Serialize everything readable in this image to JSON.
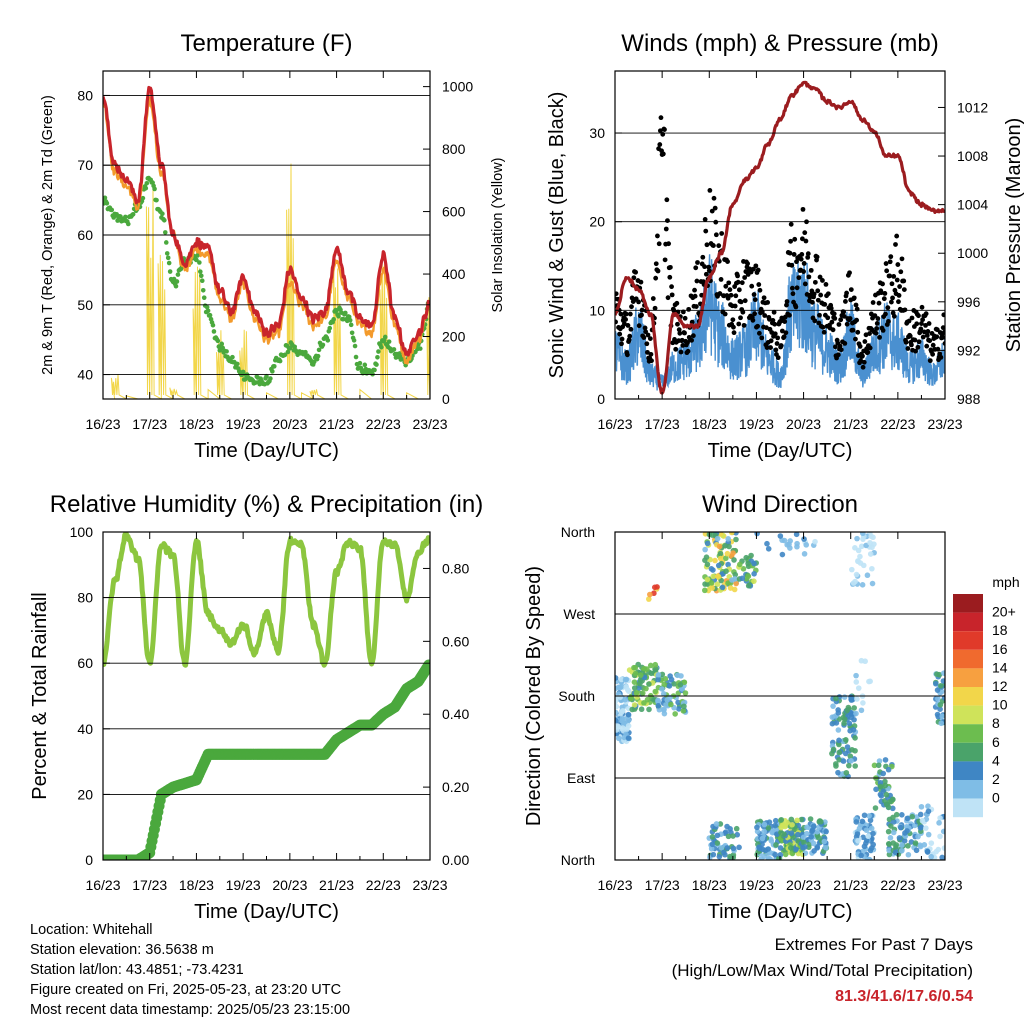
{
  "x_ticks": [
    "16/23",
    "17/23",
    "18/23",
    "19/23",
    "20/23",
    "21/23",
    "22/23",
    "23/23"
  ],
  "panels": {
    "temp": {
      "title": "Temperature (F)",
      "xlabel": "Time (Day/UTC)",
      "ylabel_left": "2m & 9m T (Red, Orange) & 2m Td (Green)",
      "ylabel_right": "Solar Insolation (Yellow)",
      "yticks_left": [
        "40",
        "50",
        "60",
        "70",
        "80"
      ],
      "yticks_right": [
        "0",
        "200",
        "400",
        "600",
        "800",
        "1000"
      ]
    },
    "wind": {
      "title": "Winds (mph) & Pressure (mb)",
      "xlabel": "Time (Day/UTC)",
      "ylabel_left": "Sonic Wind & Gust (Blue, Black)",
      "ylabel_right": "Station Pressure (Maroon)",
      "yticks_left": [
        "0",
        "10",
        "20",
        "30"
      ],
      "yticks_right": [
        "988",
        "992",
        "996",
        "1000",
        "1004",
        "1008",
        "1012"
      ]
    },
    "rh": {
      "title": "Relative Humidity (%) & Precipitation (in)",
      "xlabel": "Time (Day/UTC)",
      "ylabel_left": "Percent & Total Rainfall",
      "yticks_left": [
        "0",
        "20",
        "40",
        "60",
        "80",
        "100"
      ],
      "yticks_right": [
        "0.00",
        "0.20",
        "0.40",
        "0.60",
        "0.80"
      ]
    },
    "dir": {
      "title": "Wind Direction",
      "xlabel": "Time (Day/UTC)",
      "ylabel_left": "Direction (Colored By Speed)",
      "yticks_left": [
        "North",
        "East",
        "South",
        "West",
        "North"
      ],
      "legend_title": "mph",
      "legend_labels": [
        "20+",
        "18",
        "16",
        "14",
        "12",
        "10",
        "8",
        "6",
        "4",
        "2",
        "0"
      ],
      "legend_colors": [
        "#9b1c1f",
        "#c8242b",
        "#e03a2a",
        "#f06a2e",
        "#f7a040",
        "#f2d64a",
        "#cfe35a",
        "#6cbd4f",
        "#4aa36a",
        "#3f86c4",
        "#7fbde6",
        "#bfe3f6"
      ]
    }
  },
  "chart_data": [
    {
      "type": "line",
      "title": "Temperature (F)",
      "xlabel": "Time (Day/UTC)",
      "ylabel": "2m & 9m T (Red, Orange) & 2m Td (Green)",
      "y2label": "Solar Insolation (Yellow)",
      "x": [
        16,
        16.25,
        16.5,
        16.75,
        17,
        17.25,
        17.5,
        17.75,
        18,
        18.25,
        18.5,
        18.75,
        19,
        19.25,
        19.5,
        19.75,
        20,
        20.25,
        20.5,
        20.75,
        21,
        21.25,
        21.5,
        21.75,
        22,
        22.25,
        22.5,
        22.75,
        23
      ],
      "ylim": [
        36.5,
        83.5
      ],
      "y2lim": [
        0,
        1050
      ],
      "series": [
        {
          "name": "2m T",
          "color": "#c8242b",
          "axis": "left",
          "values": [
            80,
            70,
            68,
            65,
            81,
            70,
            60,
            56,
            59,
            58,
            52,
            49,
            54,
            49,
            46,
            47,
            55,
            51,
            48,
            49,
            58,
            52,
            48,
            47,
            57,
            48,
            43,
            46,
            50
          ]
        },
        {
          "name": "9m T",
          "color": "#f39a2b",
          "axis": "left",
          "values": [
            79,
            69,
            67,
            64,
            79,
            69,
            60,
            55,
            58,
            57,
            51,
            48,
            53,
            48,
            45,
            46,
            53,
            50,
            47,
            48,
            56,
            51,
            47,
            46,
            55,
            47,
            42,
            45,
            50
          ]
        },
        {
          "name": "2m Td",
          "color": "#4aa83d",
          "axis": "left",
          "values": [
            65,
            63,
            62,
            64,
            68,
            63,
            53,
            56,
            57,
            49,
            44,
            42,
            40,
            39,
            39,
            42,
            44,
            43,
            42,
            45,
            49,
            48,
            41,
            40,
            45,
            43,
            42,
            44,
            50
          ]
        },
        {
          "name": "Solar Insolation",
          "color": "#f2d64a",
          "axis": "right",
          "values": [
            0,
            80,
            10,
            0,
            720,
            500,
            40,
            0,
            450,
            30,
            250,
            0,
            230,
            0,
            20,
            0,
            820,
            20,
            40,
            0,
            470,
            0,
            30,
            0,
            470,
            0,
            20,
            0,
            350
          ]
        }
      ]
    },
    {
      "type": "line",
      "title": "Winds (mph) & Pressure (mb)",
      "xlabel": "Time (Day/UTC)",
      "ylabel": "Sonic Wind & Gust (Blue, Black)",
      "y2label": "Station Pressure (Maroon)",
      "x": [
        16,
        16.25,
        16.5,
        16.75,
        17,
        17.25,
        17.5,
        17.75,
        18,
        18.25,
        18.5,
        18.75,
        19,
        19.25,
        19.5,
        19.75,
        20,
        20.25,
        20.5,
        20.75,
        21,
        21.25,
        21.5,
        21.75,
        22,
        22.25,
        22.5,
        22.75,
        23
      ],
      "ylim": [
        0,
        37
      ],
      "y2lim": [
        988,
        1015
      ],
      "series": [
        {
          "name": "Sonic Wind",
          "color": "#4a90d0",
          "axis": "left",
          "values": [
            6,
            4,
            8,
            3,
            2,
            4,
            5,
            7,
            12,
            8,
            5,
            6,
            9,
            5,
            3,
            11,
            12,
            8,
            6,
            4,
            8,
            3,
            6,
            8,
            7,
            4,
            5,
            3,
            5
          ]
        },
        {
          "name": "Gust",
          "color": "#000000",
          "axis": "left",
          "values": [
            12,
            9,
            15,
            7,
            31,
            10,
            9,
            14,
            22,
            18,
            12,
            15,
            14,
            10,
            8,
            18,
            20,
            16,
            12,
            8,
            14,
            6,
            11,
            14,
            17,
            9,
            10,
            7,
            9
          ]
        },
        {
          "name": "Station Pressure",
          "color": "#9b1c1f",
          "axis": "right",
          "values": [
            995,
            998,
            997,
            995,
            988.5,
            995,
            994,
            994,
            998,
            1000,
            1004,
            1006,
            1007,
            1009,
            1011,
            1013,
            1014,
            1013.5,
            1012.5,
            1012,
            1012.5,
            1011,
            1010,
            1008,
            1008,
            1005,
            1004,
            1003.5,
            1003.5
          ]
        }
      ]
    },
    {
      "type": "line",
      "title": "Relative Humidity (%) & Precipitation (in)",
      "xlabel": "Time (Day/UTC)",
      "ylabel": "Percent & Total Rainfall",
      "x": [
        16,
        16.25,
        16.5,
        16.75,
        17,
        17.25,
        17.5,
        17.75,
        18,
        18.25,
        18.5,
        18.75,
        19,
        19.25,
        19.5,
        19.75,
        20,
        20.25,
        20.5,
        20.75,
        21,
        21.25,
        21.5,
        21.75,
        22,
        22.25,
        22.5,
        22.75,
        23
      ],
      "ylim": [
        0,
        100
      ],
      "y2lim": [
        0,
        0.9
      ],
      "series": [
        {
          "name": "Relative Humidity",
          "color": "#8cc63f",
          "axis": "left",
          "values": [
            60,
            85,
            99,
            92,
            60,
            96,
            93,
            60,
            97,
            75,
            70,
            66,
            72,
            63,
            75,
            64,
            97,
            96,
            72,
            60,
            88,
            97,
            95,
            60,
            97,
            96,
            80,
            94,
            98
          ]
        },
        {
          "name": "Total Rainfall",
          "color": "#4aa83d",
          "axis": "right",
          "values": [
            0,
            0,
            0,
            0,
            0.02,
            0.18,
            0.2,
            0.21,
            0.22,
            0.29,
            0.29,
            0.29,
            0.29,
            0.29,
            0.29,
            0.29,
            0.29,
            0.29,
            0.29,
            0.29,
            0.33,
            0.35,
            0.37,
            0.37,
            0.4,
            0.42,
            0.47,
            0.49,
            0.54
          ]
        }
      ]
    },
    {
      "type": "scatter",
      "title": "Wind Direction",
      "xlabel": "Time (Day/UTC)",
      "ylabel": "Direction (Colored By Speed)",
      "ylim": [
        0,
        360
      ],
      "legend": "mph color scale, right",
      "clusters": [
        {
          "x0": 16.0,
          "x1": 16.3,
          "dir_lo": 130,
          "dir_hi": 200,
          "speed_lo": 1,
          "speed_hi": 5,
          "n": 90
        },
        {
          "x0": 16.3,
          "x1": 16.9,
          "dir_lo": 165,
          "dir_hi": 215,
          "speed_lo": 4,
          "speed_hi": 12,
          "n": 80
        },
        {
          "x0": 16.6,
          "x1": 16.9,
          "dir_lo": 280,
          "dir_hi": 300,
          "speed_lo": 12,
          "speed_hi": 20,
          "n": 6
        },
        {
          "x0": 16.9,
          "x1": 17.5,
          "dir_lo": 160,
          "dir_hi": 205,
          "speed_lo": 2,
          "speed_hi": 10,
          "n": 70
        },
        {
          "x0": 17.9,
          "x1": 18.6,
          "dir_lo": 295,
          "dir_hi": 360,
          "speed_lo": 3,
          "speed_hi": 15,
          "n": 110
        },
        {
          "x0": 18.6,
          "x1": 19.0,
          "dir_lo": 300,
          "dir_hi": 335,
          "speed_lo": 4,
          "speed_hi": 11,
          "n": 30
        },
        {
          "x0": 18.0,
          "x1": 18.7,
          "dir_lo": 0,
          "dir_hi": 40,
          "speed_lo": 3,
          "speed_hi": 8,
          "n": 50
        },
        {
          "x0": 19.0,
          "x1": 19.5,
          "dir_lo": 0,
          "dir_hi": 45,
          "speed_lo": 2,
          "speed_hi": 8,
          "n": 80
        },
        {
          "x0": 19.5,
          "x1": 20.0,
          "dir_lo": 5,
          "dir_hi": 45,
          "speed_lo": 4,
          "speed_hi": 12,
          "n": 110
        },
        {
          "x0": 20.0,
          "x1": 20.5,
          "dir_lo": 5,
          "dir_hi": 45,
          "speed_lo": 2,
          "speed_hi": 8,
          "n": 60
        },
        {
          "x0": 19.0,
          "x1": 20.3,
          "dir_lo": 335,
          "dir_hi": 360,
          "speed_lo": 1,
          "speed_hi": 6,
          "n": 20
        },
        {
          "x0": 20.6,
          "x1": 21.1,
          "dir_lo": 90,
          "dir_hi": 180,
          "speed_lo": 3,
          "speed_hi": 8,
          "n": 90
        },
        {
          "x0": 21.0,
          "x1": 21.5,
          "dir_lo": 300,
          "dir_hi": 360,
          "speed_lo": 0,
          "speed_hi": 3,
          "n": 35
        },
        {
          "x0": 21.1,
          "x1": 21.5,
          "dir_lo": 160,
          "dir_hi": 220,
          "speed_lo": 0,
          "speed_hi": 3,
          "n": 12
        },
        {
          "x0": 21.1,
          "x1": 21.5,
          "dir_lo": 0,
          "dir_hi": 50,
          "speed_lo": 1,
          "speed_hi": 6,
          "n": 60
        },
        {
          "x0": 21.5,
          "x1": 21.9,
          "dir_lo": 50,
          "dir_hi": 110,
          "speed_lo": 3,
          "speed_hi": 9,
          "n": 45
        },
        {
          "x0": 21.8,
          "x1": 22.5,
          "dir_lo": 5,
          "dir_hi": 50,
          "speed_lo": 2,
          "speed_hi": 8,
          "n": 80
        },
        {
          "x0": 22.5,
          "x1": 23.0,
          "dir_lo": 0,
          "dir_hi": 60,
          "speed_lo": 0,
          "speed_hi": 5,
          "n": 30
        },
        {
          "x0": 22.8,
          "x1": 23.0,
          "dir_lo": 150,
          "dir_hi": 210,
          "speed_lo": 2,
          "speed_hi": 8,
          "n": 35
        }
      ]
    }
  ],
  "info": {
    "location": "Location: Whitehall",
    "elevation": "Station elevation: 36.5638 m",
    "latlon": "Station lat/lon: 43.4851; -73.4231",
    "created": "Figure created on Fri, 2025-05-23, at 23:20 UTC",
    "recent": "Most recent data timestamp: 2025/05/23 23:15:00"
  },
  "extremes": {
    "line1": "Extremes For Past 7 Days",
    "line2": "(High/Low/Max Wind/Total Precipitation)",
    "values": "81.3/41.6/17.6/0.54"
  }
}
